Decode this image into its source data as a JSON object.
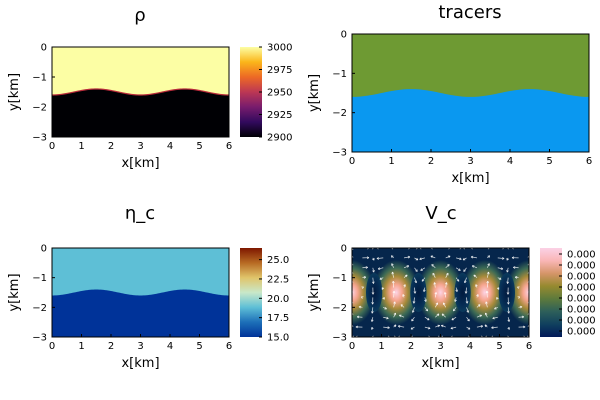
{
  "chart_data": [
    {
      "id": "rho",
      "type": "heatmap",
      "title": "ρ",
      "xlabel": "x[km]",
      "ylabel": "y[km]",
      "xlim": [
        0,
        6
      ],
      "ylim": [
        -3,
        0
      ],
      "xticks": [
        "0",
        "1",
        "2",
        "3",
        "4",
        "5",
        "6"
      ],
      "yticks": [
        "0",
        "−1",
        "−2",
        "−3"
      ],
      "colorbar": {
        "ticks": [
          "3000",
          "2975",
          "2950",
          "2925",
          "2900"
        ],
        "range": [
          2900,
          3000
        ],
        "colormap": "inferno"
      },
      "layers": [
        {
          "region": "above-interface",
          "value": 3000,
          "color": "#fcfea4"
        },
        {
          "region": "below-interface",
          "value": 2900,
          "color": "#000004"
        }
      ],
      "interface": {
        "mean_depth": -1.5,
        "amplitude": 0.1,
        "wavelength": 3.0,
        "edge_color": "#b82a3a"
      }
    },
    {
      "id": "tracers",
      "type": "heatmap",
      "title": "tracers",
      "xlabel": "x[km]",
      "ylabel": "y[km]",
      "xlim": [
        0,
        6
      ],
      "ylim": [
        -3,
        0
      ],
      "xticks": [
        "0",
        "1",
        "2",
        "3",
        "4",
        "5",
        "6"
      ],
      "yticks": [
        "0",
        "−1",
        "−2",
        "−3"
      ],
      "layers": [
        {
          "region": "above-interface",
          "color": "#6e9a33"
        },
        {
          "region": "below-interface",
          "color": "#0a98f0"
        }
      ],
      "interface": {
        "mean_depth": -1.5,
        "amplitude": 0.1,
        "wavelength": 3.0
      }
    },
    {
      "id": "eta",
      "type": "heatmap",
      "title": "η_c",
      "xlabel": "x[km]",
      "ylabel": "y[km]",
      "xlim": [
        0,
        6
      ],
      "ylim": [
        -3,
        0
      ],
      "xticks": [
        "0",
        "1",
        "2",
        "3",
        "4",
        "5",
        "6"
      ],
      "yticks": [
        "0",
        "−1",
        "−2",
        "−3"
      ],
      "colorbar": {
        "ticks": [
          "25.0",
          "22.5",
          "20.0",
          "17.5",
          "15.0"
        ],
        "range": [
          15,
          26.5
        ],
        "colormap": "roma"
      },
      "layers": [
        {
          "region": "above-interface",
          "value": 20.5,
          "color": "#5ebfd6"
        },
        {
          "region": "below-interface",
          "value": 15.0,
          "color": "#003399"
        }
      ],
      "interface": {
        "mean_depth": -1.5,
        "amplitude": 0.1,
        "wavelength": 3.0
      }
    },
    {
      "id": "vc",
      "type": "heatmap",
      "title": "V_c",
      "xlabel": "x[km]",
      "ylabel": "y[km]",
      "xlim": [
        0,
        6
      ],
      "ylim": [
        -3,
        0
      ],
      "xticks": [
        "0",
        "1",
        "2",
        "3",
        "4",
        "5",
        "6"
      ],
      "yticks": [
        "0",
        "−1",
        "−2",
        "−3"
      ],
      "colorbar": {
        "ticks": [
          "0.000",
          "0.000",
          "0.000",
          "0.000",
          "0.000",
          "0.000",
          "0.000",
          "0.000"
        ],
        "colormap": "batlow"
      },
      "cell_wavelength": 1.5,
      "hot_centers_x": [
        0,
        1.5,
        3,
        4.5,
        6
      ],
      "cold_centers_x": [
        0.75,
        2.25,
        3.75,
        5.25
      ],
      "center_depth": -1.5,
      "arrow_color": "#ffffff"
    }
  ]
}
